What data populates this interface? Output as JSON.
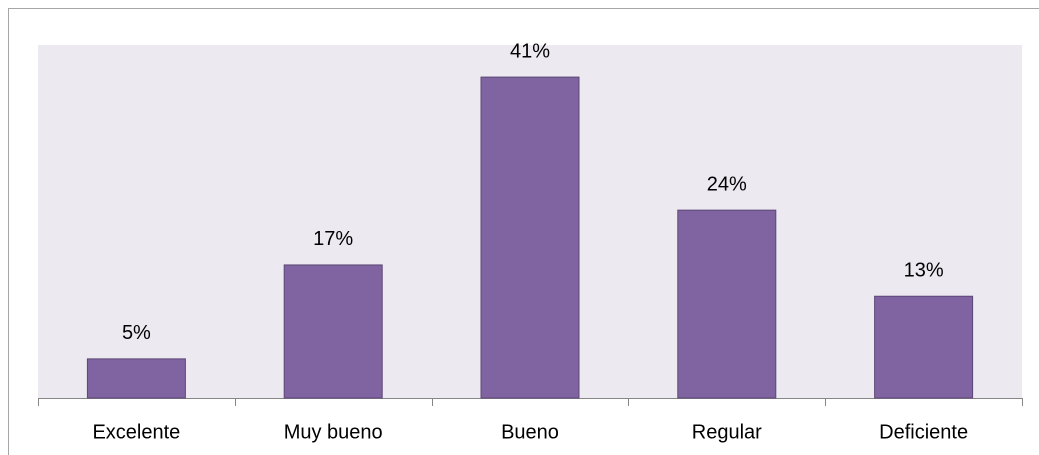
{
  "chart_data": {
    "type": "bar",
    "categories": [
      "Excelente",
      "Muy bueno",
      "Bueno",
      "Regular",
      "Deficiente"
    ],
    "values": [
      5,
      17,
      41,
      24,
      13
    ],
    "value_labels": [
      "5%",
      "17%",
      "41%",
      "24%",
      "13%"
    ],
    "color": "#8064a2"
  }
}
